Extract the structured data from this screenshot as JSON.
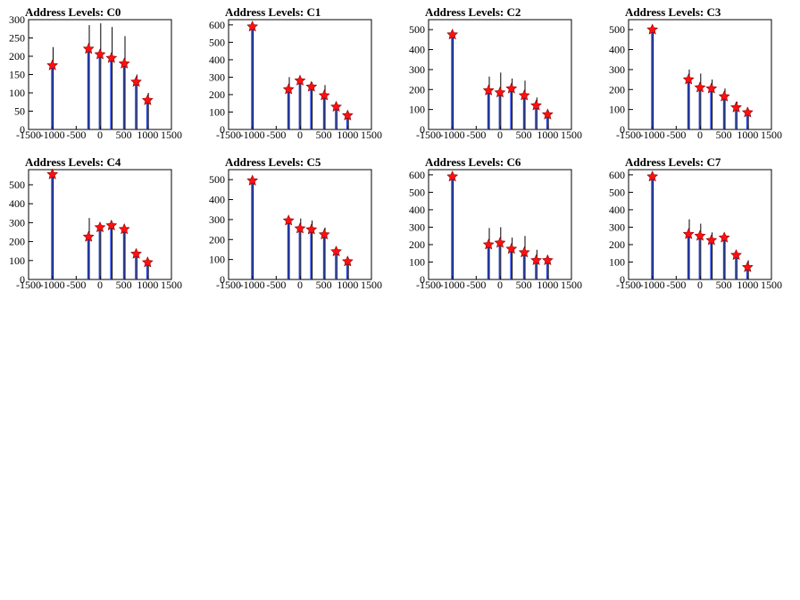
{
  "chart_data": [
    {
      "type": "bar",
      "title": "Address Levels: C0",
      "xlim": [
        -1500,
        1500
      ],
      "ylim": [
        0,
        300
      ],
      "xticks": [
        -1500,
        -1000,
        -500,
        0,
        500,
        1000,
        1500
      ],
      "yticks": [
        0,
        50,
        100,
        150,
        200,
        250,
        300
      ],
      "histogram_black": [
        [
          -1000,
          225
        ],
        [
          -240,
          285
        ],
        [
          0,
          290
        ],
        [
          240,
          280
        ],
        [
          510,
          255
        ],
        [
          760,
          150
        ],
        [
          1000,
          100
        ]
      ],
      "histogram_blue": [
        [
          -1000,
          175
        ],
        [
          -240,
          220
        ],
        [
          0,
          205
        ],
        [
          240,
          195
        ],
        [
          510,
          180
        ],
        [
          760,
          130
        ],
        [
          1000,
          80
        ]
      ],
      "peaks": [
        [
          -1000,
          175
        ],
        [
          -240,
          220
        ],
        [
          0,
          205
        ],
        [
          240,
          195
        ],
        [
          510,
          180
        ],
        [
          760,
          130
        ],
        [
          1000,
          80
        ]
      ]
    },
    {
      "type": "bar",
      "title": "Address Levels: C1",
      "xlim": [
        -1500,
        1500
      ],
      "ylim": [
        0,
        630
      ],
      "xticks": [
        -1500,
        -1000,
        -500,
        0,
        500,
        1000,
        1500
      ],
      "yticks": [
        0,
        100,
        200,
        300,
        400,
        500,
        600
      ],
      "histogram_black": [
        [
          -1000,
          600
        ],
        [
          -240,
          300
        ],
        [
          0,
          290
        ],
        [
          240,
          270
        ],
        [
          510,
          255
        ],
        [
          760,
          150
        ],
        [
          1000,
          100
        ]
      ],
      "histogram_blue": [
        [
          -1000,
          590
        ],
        [
          -240,
          230
        ],
        [
          0,
          280
        ],
        [
          240,
          245
        ],
        [
          510,
          195
        ],
        [
          760,
          130
        ],
        [
          1000,
          80
        ]
      ],
      "peaks": [
        [
          -1000,
          590
        ],
        [
          -240,
          230
        ],
        [
          0,
          280
        ],
        [
          240,
          245
        ],
        [
          510,
          195
        ],
        [
          760,
          130
        ],
        [
          1000,
          80
        ]
      ]
    },
    {
      "type": "bar",
      "title": "Address Levels: C2",
      "xlim": [
        -1500,
        1500
      ],
      "ylim": [
        0,
        550
      ],
      "xticks": [
        -1500,
        -1000,
        -500,
        0,
        500,
        1000,
        1500
      ],
      "yticks": [
        0,
        100,
        200,
        300,
        400,
        500
      ],
      "histogram_black": [
        [
          -1000,
          490
        ],
        [
          -240,
          265
        ],
        [
          0,
          285
        ],
        [
          240,
          255
        ],
        [
          510,
          245
        ],
        [
          760,
          160
        ],
        [
          1000,
          95
        ]
      ],
      "histogram_blue": [
        [
          -1000,
          475
        ],
        [
          -240,
          195
        ],
        [
          0,
          185
        ],
        [
          240,
          205
        ],
        [
          510,
          170
        ],
        [
          760,
          120
        ],
        [
          1000,
          75
        ]
      ],
      "peaks": [
        [
          -1000,
          475
        ],
        [
          -240,
          195
        ],
        [
          0,
          185
        ],
        [
          240,
          205
        ],
        [
          510,
          170
        ],
        [
          760,
          120
        ],
        [
          1000,
          75
        ]
      ]
    },
    {
      "type": "bar",
      "title": "Address Levels: C3",
      "xlim": [
        -1500,
        1500
      ],
      "ylim": [
        0,
        550
      ],
      "xticks": [
        -1500,
        -1000,
        -500,
        0,
        500,
        1000,
        1500
      ],
      "yticks": [
        0,
        100,
        200,
        300,
        400,
        500
      ],
      "histogram_black": [
        [
          -1000,
          500
        ],
        [
          -240,
          300
        ],
        [
          0,
          280
        ],
        [
          240,
          250
        ],
        [
          510,
          205
        ],
        [
          760,
          140
        ],
        [
          1000,
          95
        ]
      ],
      "histogram_blue": [
        [
          -1000,
          500
        ],
        [
          -240,
          250
        ],
        [
          0,
          210
        ],
        [
          240,
          205
        ],
        [
          510,
          165
        ],
        [
          760,
          110
        ],
        [
          1000,
          85
        ]
      ],
      "peaks": [
        [
          -1000,
          500
        ],
        [
          -240,
          250
        ],
        [
          0,
          210
        ],
        [
          240,
          205
        ],
        [
          510,
          165
        ],
        [
          760,
          110
        ],
        [
          1000,
          85
        ]
      ]
    },
    {
      "type": "bar",
      "title": "Address Levels: C4",
      "xlim": [
        -1500,
        1500
      ],
      "ylim": [
        0,
        580
      ],
      "xticks": [
        -1500,
        -1000,
        -500,
        0,
        500,
        1000,
        1500
      ],
      "yticks": [
        0,
        100,
        200,
        300,
        400,
        500
      ],
      "histogram_black": [
        [
          -1000,
          560
        ],
        [
          -240,
          325
        ],
        [
          0,
          280
        ],
        [
          240,
          290
        ],
        [
          510,
          280
        ],
        [
          760,
          150
        ],
        [
          1000,
          100
        ]
      ],
      "histogram_blue": [
        [
          -1000,
          555
        ],
        [
          -240,
          225
        ],
        [
          0,
          275
        ],
        [
          240,
          285
        ],
        [
          510,
          265
        ],
        [
          760,
          135
        ],
        [
          1000,
          90
        ]
      ],
      "peaks": [
        [
          -1000,
          555
        ],
        [
          -240,
          225
        ],
        [
          0,
          275
        ],
        [
          240,
          285
        ],
        [
          510,
          265
        ],
        [
          760,
          135
        ],
        [
          1000,
          90
        ]
      ]
    },
    {
      "type": "bar",
      "title": "Address Levels: C5",
      "xlim": [
        -1500,
        1500
      ],
      "ylim": [
        0,
        550
      ],
      "xticks": [
        -1500,
        -1000,
        -500,
        0,
        500,
        1000,
        1500
      ],
      "yticks": [
        0,
        100,
        200,
        300,
        400,
        500
      ],
      "histogram_black": [
        [
          -1000,
          510
        ],
        [
          -240,
          300
        ],
        [
          0,
          305
        ],
        [
          240,
          295
        ],
        [
          510,
          260
        ],
        [
          760,
          150
        ],
        [
          1000,
          100
        ]
      ],
      "histogram_blue": [
        [
          -1000,
          495
        ],
        [
          -240,
          295
        ],
        [
          0,
          255
        ],
        [
          240,
          250
        ],
        [
          510,
          225
        ],
        [
          760,
          140
        ],
        [
          1000,
          90
        ]
      ],
      "peaks": [
        [
          -1000,
          495
        ],
        [
          -240,
          295
        ],
        [
          0,
          255
        ],
        [
          240,
          250
        ],
        [
          510,
          225
        ],
        [
          760,
          140
        ],
        [
          1000,
          90
        ]
      ]
    },
    {
      "type": "bar",
      "title": "Address Levels: C6",
      "xlim": [
        -1500,
        1500
      ],
      "ylim": [
        0,
        630
      ],
      "xticks": [
        -1500,
        -1000,
        -500,
        0,
        500,
        1000,
        1500
      ],
      "yticks": [
        0,
        100,
        200,
        300,
        400,
        500,
        600
      ],
      "histogram_black": [
        [
          -1000,
          600
        ],
        [
          -240,
          295
        ],
        [
          0,
          300
        ],
        [
          240,
          240
        ],
        [
          510,
          250
        ],
        [
          760,
          170
        ],
        [
          1000,
          110
        ]
      ],
      "histogram_blue": [
        [
          -1000,
          590
        ],
        [
          -240,
          200
        ],
        [
          0,
          210
        ],
        [
          240,
          175
        ],
        [
          510,
          155
        ],
        [
          760,
          110
        ],
        [
          1000,
          110
        ]
      ],
      "peaks": [
        [
          -1000,
          590
        ],
        [
          -240,
          200
        ],
        [
          0,
          210
        ],
        [
          240,
          175
        ],
        [
          510,
          155
        ],
        [
          760,
          110
        ],
        [
          1000,
          110
        ]
      ]
    },
    {
      "type": "bar",
      "title": "Address Levels: C7",
      "xlim": [
        -1500,
        1500
      ],
      "ylim": [
        0,
        630
      ],
      "xticks": [
        -1500,
        -1000,
        -500,
        0,
        500,
        1000,
        1500
      ],
      "yticks": [
        0,
        100,
        200,
        300,
        400,
        500,
        600
      ],
      "histogram_black": [
        [
          -1000,
          590
        ],
        [
          -240,
          345
        ],
        [
          0,
          320
        ],
        [
          240,
          270
        ],
        [
          510,
          245
        ],
        [
          760,
          150
        ],
        [
          1000,
          110
        ]
      ],
      "histogram_blue": [
        [
          -1000,
          590
        ],
        [
          -240,
          260
        ],
        [
          0,
          250
        ],
        [
          240,
          225
        ],
        [
          510,
          240
        ],
        [
          760,
          140
        ],
        [
          1000,
          70
        ]
      ],
      "peaks": [
        [
          -1000,
          590
        ],
        [
          -240,
          260
        ],
        [
          0,
          250
        ],
        [
          240,
          225
        ],
        [
          510,
          240
        ],
        [
          760,
          140
        ],
        [
          1000,
          70
        ]
      ]
    }
  ]
}
